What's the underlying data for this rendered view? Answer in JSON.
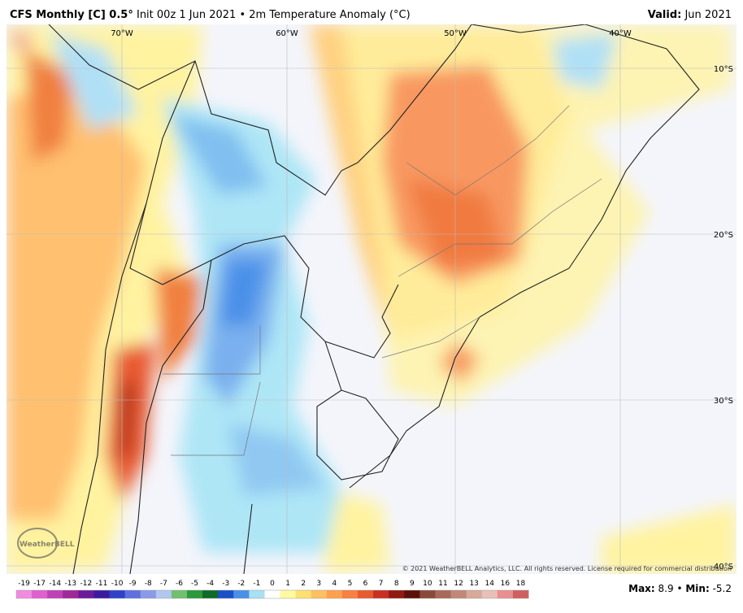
{
  "header": {
    "title_bold": "CFS Monthly [C] 0.5°",
    "title_rest": "Init 00z 1 Jun 2021 • 2m Temperature Anomaly (°C)",
    "valid_label": "Valid:",
    "valid_value": "Jun 2021"
  },
  "map": {
    "lon_labels": [
      "70°W",
      "60°W",
      "50°W",
      "40°W"
    ],
    "lat_labels": [
      "10°S",
      "20°S",
      "30°S",
      "40°S"
    ],
    "copyright": "© 2021 WeatherBELL Analytics, LLC. All rights reserved. License required for commercial distribution",
    "logo": "WeatherBELL"
  },
  "colorbar": {
    "labels": [
      "-19",
      "-17",
      "-14",
      "-13",
      "-12",
      "-11",
      "-10",
      "-9",
      "-8",
      "-7",
      "-6",
      "-5",
      "-4",
      "-3",
      "-2",
      "-1",
      "0",
      "1",
      "2",
      "3",
      "4",
      "5",
      "6",
      "7",
      "8",
      "9",
      "10",
      "11",
      "12",
      "13",
      "14",
      "16",
      "18"
    ],
    "colors": [
      "#f08ce0",
      "#e060d0",
      "#c040b8",
      "#a02898",
      "#6a1a9a",
      "#3a1aa0",
      "#3040c8",
      "#6070e0",
      "#8a9ae8",
      "#b0c8f0",
      "#70c070",
      "#2a9a3a",
      "#106a2a",
      "#1a50c8",
      "#4a90e8",
      "#a8e0f4",
      "#ffffff",
      "#fffaa0",
      "#ffe070",
      "#ffc060",
      "#ffa050",
      "#f88040",
      "#e85a30",
      "#c83020",
      "#901a10",
      "#5a1008",
      "#8a4a3a",
      "#a86a5a",
      "#c08878",
      "#d8a898",
      "#e8c0b8",
      "#e89090",
      "#d06060"
    ]
  },
  "stats": {
    "max_label": "Max:",
    "max_value": "8.9",
    "min_label": "Min:",
    "min_value": "-5.2"
  }
}
